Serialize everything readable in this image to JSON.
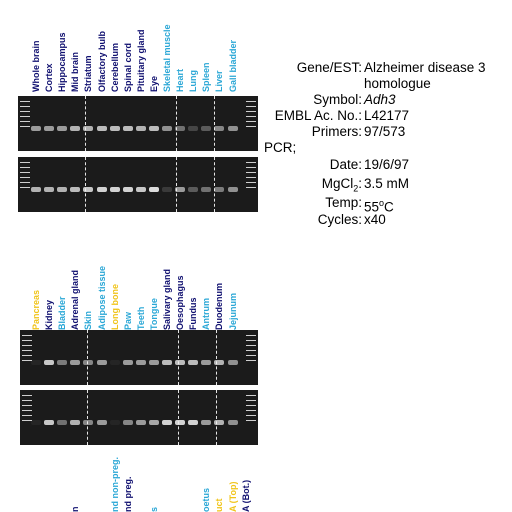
{
  "colors": {
    "darkblue": "#101070",
    "lightblue": "#2aa7d6",
    "yellow": "#f0c419",
    "gel_bg": "#1b1b1b",
    "band": "#f2f2f2"
  },
  "info": {
    "gene_key": "Gene/EST:",
    "gene_val_line1": "Alzheimer disease 3",
    "gene_val_line2": "homologue",
    "symbol_key": "Symbol:",
    "symbol_val": "Adh3",
    "embl_key": "EMBL Ac. No.:",
    "embl_val": "L42177",
    "primers_key": "Primers:",
    "primers_val": "97/573",
    "pcr_label": "PCR;",
    "date_key": "Date:",
    "date_val": "19/6/97",
    "mgcl_key": "MgCl",
    "mgcl_sub": "2",
    "mgcl_colon": ":",
    "mgcl_val": "3.5 mM",
    "temp_key": "Temp:",
    "temp_val": "55",
    "temp_sup": "o",
    "temp_unit": "C",
    "cycles_key": "Cycles:",
    "cycles_val": "x40"
  },
  "panel1": {
    "lanes": [
      {
        "label": "Whole brain",
        "color": "darkblue",
        "top": 0.6,
        "bottom": 0.7
      },
      {
        "label": "Cortex",
        "color": "darkblue",
        "top": 0.6,
        "bottom": 0.7
      },
      {
        "label": "Hippocampus",
        "color": "darkblue",
        "top": 0.6,
        "bottom": 0.7
      },
      {
        "label": "Mid brain",
        "color": "darkblue",
        "top": 0.7,
        "bottom": 0.75
      },
      {
        "label": "Striatum",
        "color": "darkblue",
        "top": 0.7,
        "bottom": 0.8
      },
      {
        "label": "Olfactory bulb",
        "color": "darkblue",
        "top": 0.75,
        "bottom": 0.85
      },
      {
        "label": "Cerebellum",
        "color": "darkblue",
        "top": 0.75,
        "bottom": 0.85
      },
      {
        "label": "Spinal cord",
        "color": "darkblue",
        "top": 0.75,
        "bottom": 0.85
      },
      {
        "label": "Pituitary gland",
        "color": "darkblue",
        "top": 0.7,
        "bottom": 0.8
      },
      {
        "label": "Eye",
        "color": "darkblue",
        "top": 0.75,
        "bottom": 0.9
      },
      {
        "label": "Skeletal muscle",
        "color": "lightblue",
        "top": 0.55,
        "bottom": 0.15
      },
      {
        "label": "Heart",
        "color": "lightblue",
        "top": 0.4,
        "bottom": 0.6
      },
      {
        "label": "Lung",
        "color": "lightblue",
        "top": 0.2,
        "bottom": 0.3
      },
      {
        "label": "Spleen",
        "color": "lightblue",
        "top": 0.3,
        "bottom": 0.4
      },
      {
        "label": "Liver",
        "color": "lightblue",
        "top": 0.5,
        "bottom": 0.45
      },
      {
        "label": "Gall bladder",
        "color": "lightblue",
        "top": 0.55,
        "bottom": 0.55
      }
    ]
  },
  "panel2": {
    "lanes": [
      {
        "label": "Pancreas",
        "color": "yellow",
        "top": 0.05,
        "bottom": 0.05
      },
      {
        "label": "Kidney",
        "color": "darkblue",
        "top": 0.8,
        "bottom": 0.8
      },
      {
        "label": "Bladder",
        "color": "lightblue",
        "top": 0.45,
        "bottom": 0.4
      },
      {
        "label": "Adrenal gland",
        "color": "darkblue",
        "top": 0.6,
        "bottom": 0.7
      },
      {
        "label": "Skin",
        "color": "lightblue",
        "top": 0.5,
        "bottom": 0.5
      },
      {
        "label": "Adipose tissue",
        "color": "lightblue",
        "top": 0.6,
        "bottom": 0.6
      },
      {
        "label": "Long bone",
        "color": "yellow",
        "top": 0.05,
        "bottom": 0.05
      },
      {
        "label": "Paw",
        "color": "lightblue",
        "top": 0.6,
        "bottom": 0.5
      },
      {
        "label": "Teeth",
        "color": "lightblue",
        "top": 0.6,
        "bottom": 0.6
      },
      {
        "label": "Tongue",
        "color": "lightblue",
        "top": 0.6,
        "bottom": 0.65
      },
      {
        "label": "Salivary gland",
        "color": "darkblue",
        "top": 0.75,
        "bottom": 0.85
      },
      {
        "label": "Oesophagus",
        "color": "darkblue",
        "top": 0.75,
        "bottom": 0.85
      },
      {
        "label": "Fundus",
        "color": "darkblue",
        "top": 0.75,
        "bottom": 0.85
      },
      {
        "label": "Antrum",
        "color": "lightblue",
        "top": 0.6,
        "bottom": 0.6
      },
      {
        "label": "Duodenum",
        "color": "darkblue",
        "top": 0.7,
        "bottom": 0.7
      },
      {
        "label": "Jejunum",
        "color": "lightblue",
        "top": 0.55,
        "bottom": 0.55
      }
    ]
  },
  "panel3": {
    "lanes": [
      {
        "label": "",
        "color": "darkblue"
      },
      {
        "label": "",
        "color": "darkblue"
      },
      {
        "label": "",
        "color": "darkblue"
      },
      {
        "label": "n",
        "color": "darkblue"
      },
      {
        "label": "",
        "color": "darkblue"
      },
      {
        "label": "",
        "color": "darkblue"
      },
      {
        "label": "nd non-preg.",
        "color": "lightblue"
      },
      {
        "label": "nd preg.",
        "color": "darkblue"
      },
      {
        "label": "",
        "color": "darkblue"
      },
      {
        "label": "s",
        "color": "lightblue"
      },
      {
        "label": "",
        "color": "darkblue"
      },
      {
        "label": "",
        "color": "darkblue"
      },
      {
        "label": "",
        "color": "darkblue"
      },
      {
        "label": "oetus",
        "color": "lightblue"
      },
      {
        "label": "uct",
        "color": "yellow"
      },
      {
        "label": "A (Top)",
        "color": "yellow"
      },
      {
        "label": "A (Bot.)",
        "color": "darkblue"
      }
    ]
  }
}
